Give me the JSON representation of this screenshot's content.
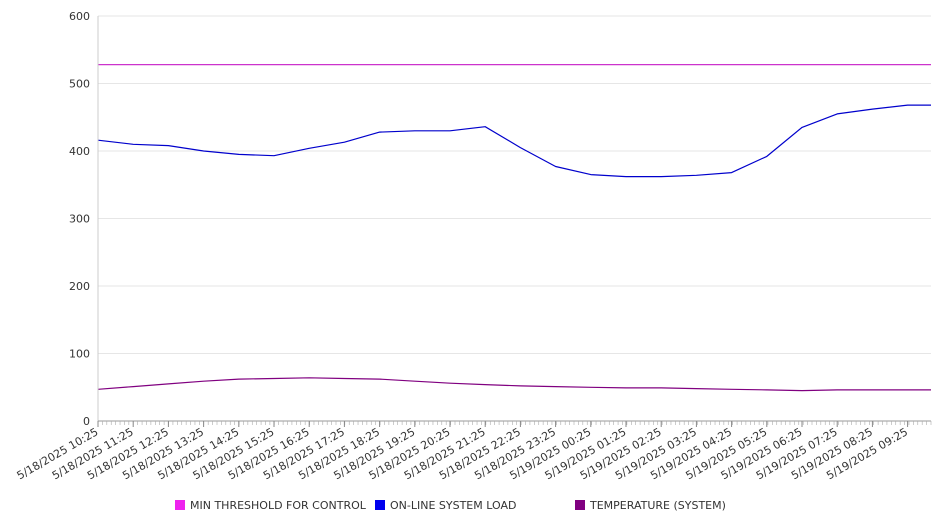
{
  "chart_data": {
    "type": "line",
    "x_tick_labels": [
      "5/18/2025 10:25",
      "5/18/2025 11:25",
      "5/18/2025 12:25",
      "5/18/2025 13:25",
      "5/18/2025 14:25",
      "5/18/2025 15:25",
      "5/18/2025 16:25",
      "5/18/2025 17:25",
      "5/18/2025 18:25",
      "5/18/2025 19:25",
      "5/18/2025 20:25",
      "5/18/2025 21:25",
      "5/18/2025 22:25",
      "5/18/2025 23:25",
      "5/19/2025 00:25",
      "5/19/2025 01:25",
      "5/19/2025 02:25",
      "5/19/2025 03:25",
      "5/19/2025 04:25",
      "5/19/2025 05:25",
      "5/19/2025 06:25",
      "5/19/2025 07:25",
      "5/19/2025 08:25",
      "5/19/2025 09:25"
    ],
    "y_ticks": [
      0,
      100,
      200,
      300,
      400,
      500,
      600
    ],
    "ylim": [
      0,
      600
    ],
    "grid": "horizontal",
    "legend_position": "bottom",
    "series": [
      {
        "name": "MIN THRESHOLD FOR CONTROL",
        "color": "#cc33cc",
        "values": [
          528,
          528,
          528,
          528,
          528,
          528,
          528,
          528,
          528,
          528,
          528,
          528,
          528,
          528,
          528,
          528,
          528,
          528,
          528,
          528,
          528,
          528,
          528,
          528
        ]
      },
      {
        "name": "ON-LINE SYSTEM LOAD",
        "color": "#0000cc",
        "values": [
          416,
          410,
          408,
          400,
          395,
          393,
          404,
          413,
          428,
          430,
          430,
          436,
          405,
          377,
          365,
          362,
          362,
          364,
          368,
          392,
          435,
          455,
          462,
          468
        ]
      },
      {
        "name": "TEMPERATURE (SYSTEM)",
        "color": "#800080",
        "values": [
          47,
          51,
          55,
          59,
          62,
          63,
          64,
          63,
          62,
          59,
          56,
          54,
          52,
          51,
          50,
          49,
          49,
          48,
          47,
          46,
          45,
          46,
          46,
          46
        ]
      }
    ]
  },
  "legend": {
    "swatch_colors": [
      "#ee22ee",
      "#0000ee",
      "#800080"
    ]
  }
}
